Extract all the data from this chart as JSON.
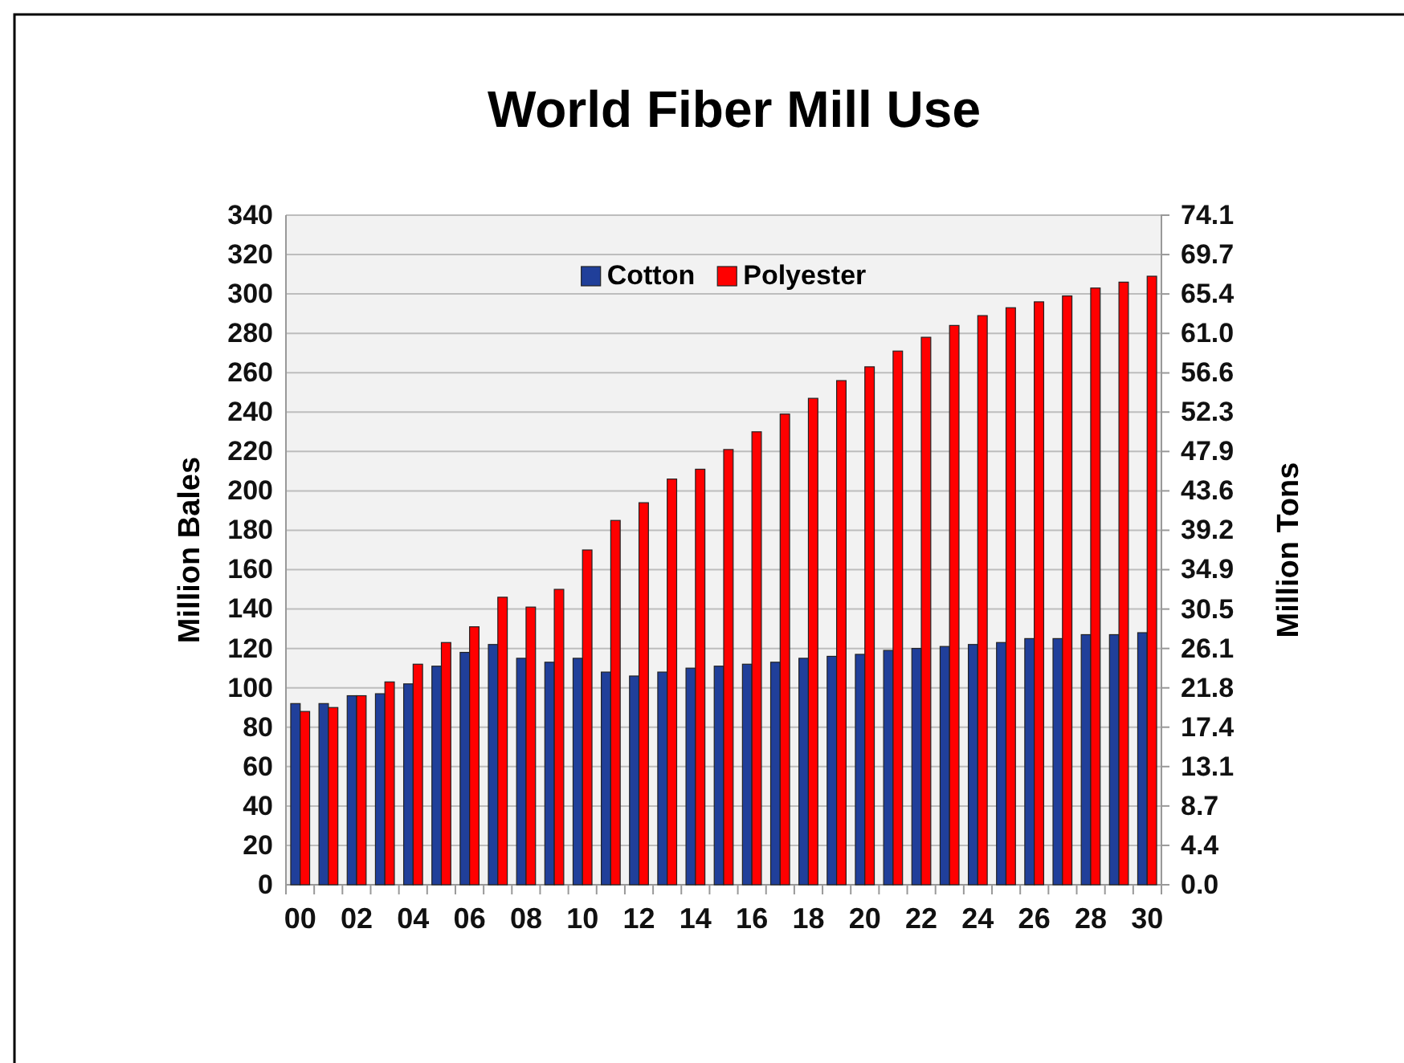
{
  "chart_data": {
    "type": "bar",
    "title": "World Fiber Mill Use",
    "ylabel": "Million Bales",
    "y2label": "Million Tons",
    "categories": [
      "00",
      null,
      "02",
      null,
      "04",
      null,
      "06",
      null,
      "08",
      null,
      "10",
      null,
      "12",
      null,
      "14",
      null,
      "16",
      null,
      "18",
      null,
      "20",
      null,
      "22",
      null,
      "24",
      null,
      "26",
      null,
      "28",
      null,
      "30"
    ],
    "series": [
      {
        "name": "Cotton",
        "color": "#203f9a",
        "values": [
          92,
          92,
          96,
          97,
          102,
          111,
          118,
          122,
          115,
          113,
          115,
          108,
          106,
          108,
          110,
          111,
          112,
          113,
          115,
          116,
          117,
          119,
          120,
          121,
          122,
          123,
          125,
          125,
          127,
          127,
          128
        ]
      },
      {
        "name": "Polyester",
        "color": "#ff0000",
        "values": [
          88,
          90,
          96,
          103,
          112,
          123,
          131,
          146,
          141,
          150,
          170,
          185,
          194,
          206,
          211,
          221,
          230,
          239,
          247,
          256,
          263,
          271,
          278,
          284,
          289,
          293,
          296,
          299,
          303,
          306,
          309
        ]
      }
    ],
    "ylim": [
      0,
      340
    ],
    "yticks": [
      0,
      20,
      40,
      60,
      80,
      100,
      120,
      140,
      160,
      180,
      200,
      220,
      240,
      260,
      280,
      300,
      320,
      340
    ],
    "y2lim": [
      0,
      74.1
    ],
    "y2ticks": [
      {
        "value": 0,
        "label": "0.0"
      },
      {
        "value": 4.36,
        "label": "4.4"
      },
      {
        "value": 8.72,
        "label": "8.7"
      },
      {
        "value": 13.08,
        "label": "13.1"
      },
      {
        "value": 17.44,
        "label": "17.4"
      },
      {
        "value": 21.79,
        "label": "21.8"
      },
      {
        "value": 26.15,
        "label": "26.1"
      },
      {
        "value": 30.51,
        "label": "30.5"
      },
      {
        "value": 34.87,
        "label": "34.9"
      },
      {
        "value": 39.23,
        "label": "39.2"
      },
      {
        "value": 43.59,
        "label": "43.6"
      },
      {
        "value": 47.95,
        "label": "47.9"
      },
      {
        "value": 52.31,
        "label": "52.3"
      },
      {
        "value": 56.64,
        "label": "56.6"
      },
      {
        "value": 61.02,
        "label": "61.0"
      },
      {
        "value": 65.38,
        "label": "65.4"
      },
      {
        "value": 69.74,
        "label": "69.7"
      },
      {
        "value": 74.1,
        "label": "74.1"
      }
    ],
    "grid": "y",
    "legend": "top"
  }
}
